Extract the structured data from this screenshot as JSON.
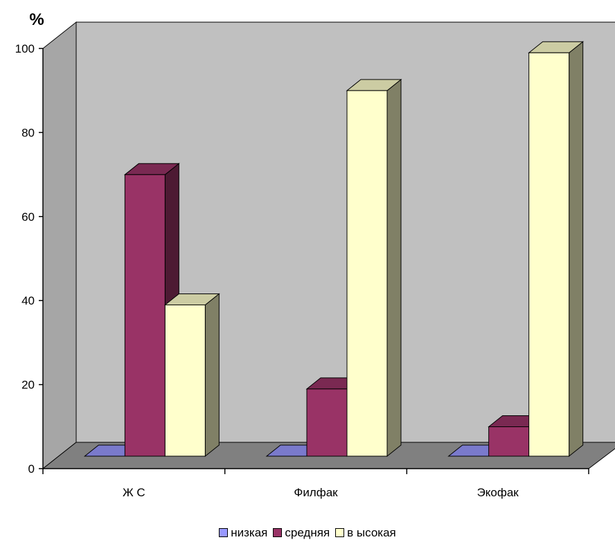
{
  "chart_data": {
    "type": "bar",
    "ylabel": "%",
    "ylim": [
      0,
      100
    ],
    "yticks": [
      0,
      20,
      40,
      60,
      80,
      100
    ],
    "categories": [
      "Ж С",
      "Филфак",
      "Экофак"
    ],
    "series": [
      {
        "name": "низкая",
        "values": [
          0,
          0,
          0
        ],
        "color": "#9999ff"
      },
      {
        "name": "средняя",
        "values": [
          67,
          16,
          7
        ],
        "color": "#993366"
      },
      {
        "name": "в ысокая",
        "values": [
          36,
          87,
          96
        ],
        "color": "#ffffcc"
      }
    ],
    "legend_position": "bottom",
    "wall_color": "#c0c0c0",
    "floor_color": "#808080",
    "style": "3d-clustered-column"
  }
}
